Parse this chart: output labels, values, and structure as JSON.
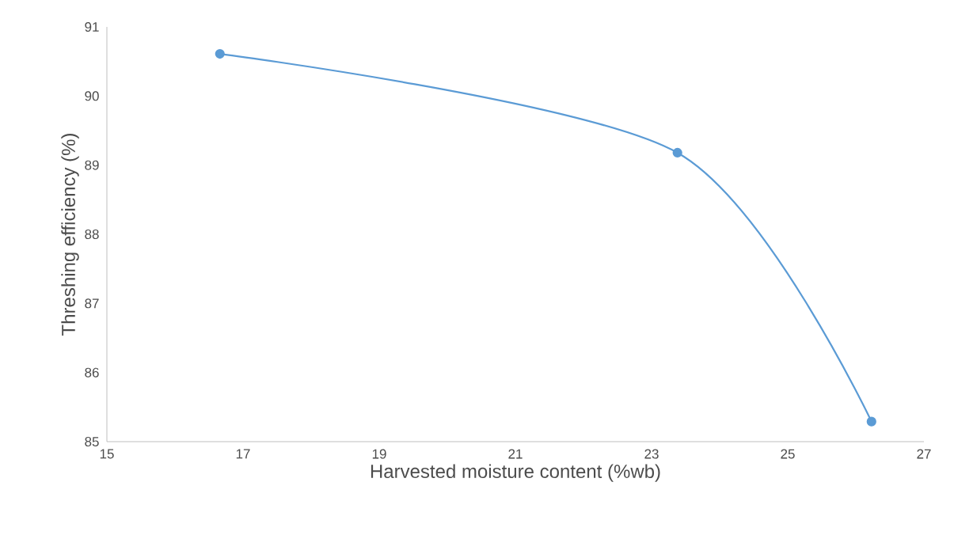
{
  "chart_data": {
    "type": "line",
    "xlabel": "Harvested moisture content (%wb)",
    "ylabel": "Threshing efficiency (%)",
    "x": [
      16.66,
      23.38,
      26.23
    ],
    "series": [
      {
        "color": "#5b9bd5",
        "values": [
          90.61,
          89.18,
          85.29
        ]
      }
    ],
    "xlim": [
      15,
      27
    ],
    "xticks": [
      15,
      17,
      19,
      21,
      23,
      25,
      27
    ],
    "ylim": [
      85,
      91
    ],
    "yticks": [
      85,
      86,
      87,
      88,
      89,
      90,
      91
    ],
    "marker": "circle",
    "line_style": "solid"
  }
}
